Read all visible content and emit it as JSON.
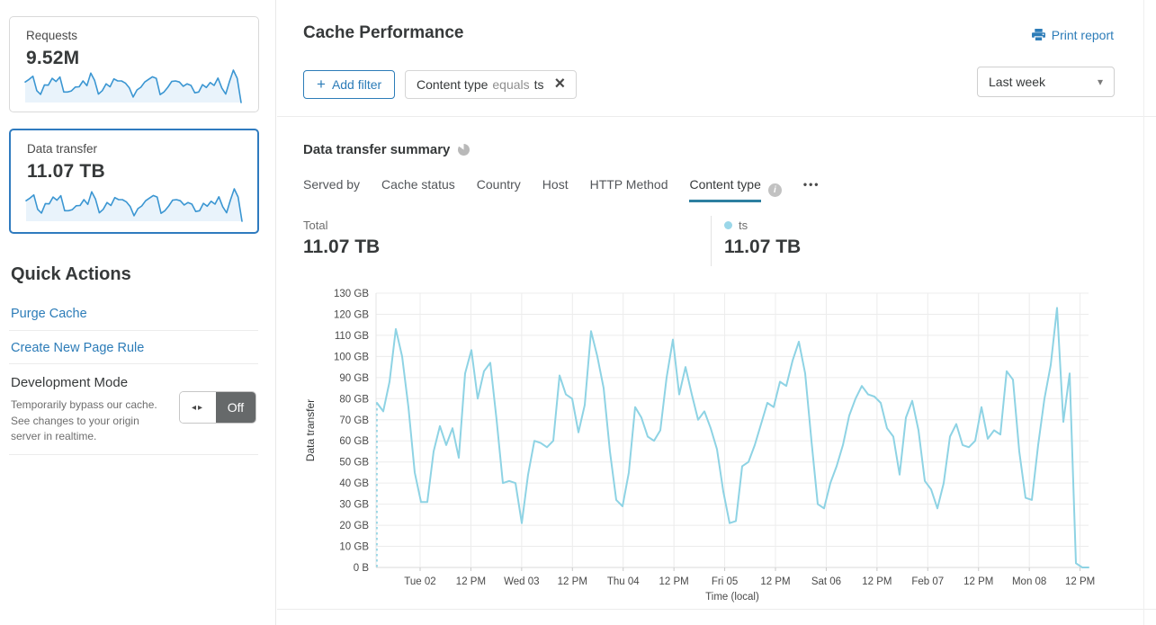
{
  "colors": {
    "accent_blue": "#2c7cb8",
    "selected_card_border": "#2f7bbf",
    "sparkline_line": "#3b96d2",
    "sparkline_fill": "#e9f3fb",
    "chart_line": "#8ed3e4",
    "legend_dot": "#9bd7e9",
    "tab_underline": "#2d7fa0",
    "toggle_off_bg": "#66696a"
  },
  "sidebar": {
    "cards": [
      {
        "label": "Requests",
        "value": "9.52M",
        "selected": false
      },
      {
        "label": "Data transfer",
        "value": "11.07 TB",
        "selected": true
      }
    ],
    "sparkline_values": [
      78,
      88,
      100,
      45,
      31,
      67,
      66,
      92,
      80,
      97,
      40,
      40,
      44,
      59,
      60,
      82,
      64,
      112,
      85,
      32,
      45,
      71,
      60,
      90,
      82,
      82,
      74,
      56,
      21,
      48,
      58,
      78,
      88,
      98,
      92,
      30,
      40,
      58,
      80,
      82,
      78,
      62,
      71,
      65,
      37,
      40,
      68,
      57,
      76,
      65,
      93,
      55,
      32,
      80,
      123,
      92,
      0
    ],
    "quick_actions_title": "Quick Actions",
    "links": [
      {
        "label": "Purge Cache"
      },
      {
        "label": "Create New Page Rule"
      }
    ],
    "dev_mode": {
      "title": "Development Mode",
      "description": "Temporarily bypass our cache. See changes to your origin server in realtime.",
      "toggle_icon": "◂▸",
      "toggle_label": "Off"
    }
  },
  "header": {
    "title": "Cache Performance",
    "print_label": "Print report"
  },
  "filters": {
    "add_plus": "+",
    "add_label": "Add filter",
    "chip": {
      "field": "Content type",
      "operator": "equals",
      "value": "ts",
      "close_icon": "×"
    },
    "time_range": "Last week",
    "caret_icon": "▾"
  },
  "summary": {
    "title": "Data transfer summary",
    "tabs": [
      {
        "label": "Served by",
        "active": false
      },
      {
        "label": "Cache status",
        "active": false
      },
      {
        "label": "Country",
        "active": false
      },
      {
        "label": "Host",
        "active": false
      },
      {
        "label": "HTTP Method",
        "active": false
      },
      {
        "label": "Content type",
        "active": true
      }
    ],
    "info_icon_glyph": "i",
    "more_icon": "•••",
    "total_label": "Total",
    "total_value": "11.07 TB",
    "legend": {
      "name": "ts",
      "value": "11.07 TB",
      "color": "#9bd7e9"
    }
  },
  "chart_data": {
    "type": "line",
    "title": "Data transfer summary",
    "xlabel": "Time (local)",
    "ylabel": "Data transfer",
    "x_ticks": [
      "Tue 02",
      "12 PM",
      "Wed 03",
      "12 PM",
      "Thu 04",
      "12 PM",
      "Fri 05",
      "12 PM",
      "Sat 06",
      "12 PM",
      "Feb 07",
      "12 PM",
      "Mon 08",
      "12 PM"
    ],
    "y_ticks": [
      "0 B",
      "10 GB",
      "20 GB",
      "30 GB",
      "40 GB",
      "50 GB",
      "60 GB",
      "70 GB",
      "80 GB",
      "90 GB",
      "100 GB",
      "110 GB",
      "120 GB",
      "130 GB"
    ],
    "ylim": [
      0,
      130
    ],
    "unit": "GB",
    "grid": true,
    "legend_position": "top-right",
    "start_dashed": true,
    "series": [
      {
        "name": "ts",
        "color": "#8ed3e4",
        "values": [
          78,
          74,
          88,
          113,
          100,
          76,
          45,
          31,
          31,
          55,
          67,
          58,
          66,
          52,
          92,
          103,
          80,
          93,
          97,
          70,
          40,
          41,
          40,
          21,
          44,
          60,
          59,
          57,
          60,
          91,
          82,
          80,
          64,
          77,
          112,
          100,
          85,
          55,
          32,
          29,
          45,
          76,
          71,
          62,
          60,
          65,
          90,
          108,
          82,
          95,
          82,
          70,
          74,
          66,
          56,
          36,
          21,
          22,
          48,
          50,
          58,
          68,
          78,
          76,
          88,
          86,
          98,
          107,
          92,
          60,
          30,
          28,
          40,
          48,
          58,
          72,
          80,
          86,
          82,
          81,
          78,
          66,
          62,
          44,
          71,
          79,
          65,
          41,
          37,
          28,
          40,
          62,
          68,
          58,
          57,
          60,
          76,
          61,
          65,
          63,
          93,
          89,
          55,
          33,
          32,
          58,
          80,
          96,
          123,
          69,
          92,
          2,
          0,
          0
        ]
      }
    ]
  }
}
